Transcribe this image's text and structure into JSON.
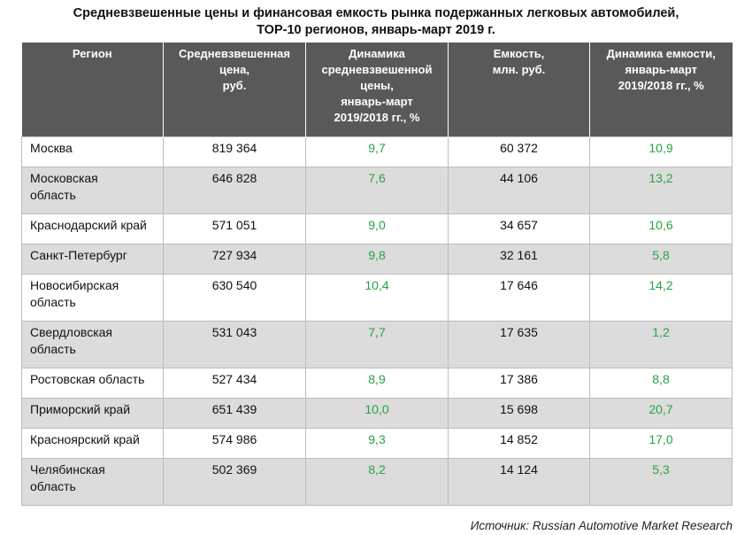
{
  "title": {
    "line1": "Средневзвешенные цены и финансовая емкость рынка подержанных легковых автомобилей,",
    "line2": "ТОР-10 регионов, январь-март 2019 г."
  },
  "table": {
    "headers": [
      [
        "Регион"
      ],
      [
        "Средневзвешенная",
        "цена,",
        "руб."
      ],
      [
        "Динамика",
        "средневзвешенной",
        "цены,",
        "январь-март",
        "2019/2018 гг., %"
      ],
      [
        "Емкость,",
        "млн. руб."
      ],
      [
        "Динамика емкости,",
        "январь-март",
        "2019/2018 гг., %"
      ]
    ],
    "rows": [
      {
        "region": [
          "Москва"
        ],
        "price": "819 364",
        "price_dyn": "9,7",
        "capacity": "60 372",
        "capacity_dyn": "10,9"
      },
      {
        "region": [
          "Московская",
          "область"
        ],
        "price": "646 828",
        "price_dyn": "7,6",
        "capacity": "44 106",
        "capacity_dyn": "13,2"
      },
      {
        "region": [
          "Краснодарский край"
        ],
        "price": "571 051",
        "price_dyn": "9,0",
        "capacity": "34 657",
        "capacity_dyn": "10,6"
      },
      {
        "region": [
          "Санкт-Петербург"
        ],
        "price": "727 934",
        "price_dyn": "9,8",
        "capacity": "32 161",
        "capacity_dyn": "5,8"
      },
      {
        "region": [
          "Новосибирская",
          "область"
        ],
        "price": "630 540",
        "price_dyn": "10,4",
        "capacity": "17 646",
        "capacity_dyn": "14,2"
      },
      {
        "region": [
          "Свердловская",
          "область"
        ],
        "price": "531 043",
        "price_dyn": "7,7",
        "capacity": "17 635",
        "capacity_dyn": "1,2"
      },
      {
        "region": [
          "Ростовская область"
        ],
        "price": "527 434",
        "price_dyn": "8,9",
        "capacity": "17 386",
        "capacity_dyn": "8,8"
      },
      {
        "region": [
          "Приморский край"
        ],
        "price": "651 439",
        "price_dyn": "10,0",
        "capacity": "15 698",
        "capacity_dyn": "20,7"
      },
      {
        "region": [
          "Красноярский край"
        ],
        "price": "574 986",
        "price_dyn": "9,3",
        "capacity": "14 852",
        "capacity_dyn": "17,0"
      },
      {
        "region": [
          "Челябинская",
          "область"
        ],
        "price": "502 369",
        "price_dyn": "8,2",
        "capacity": "14 124",
        "capacity_dyn": "5,3"
      }
    ]
  },
  "source": "Источник: Russian Automotive Market Research",
  "colors": {
    "header_bg": "#595959",
    "header_text": "#ffffff",
    "stripe": "#dcdcdc",
    "dynamics_green": "#27a244"
  }
}
